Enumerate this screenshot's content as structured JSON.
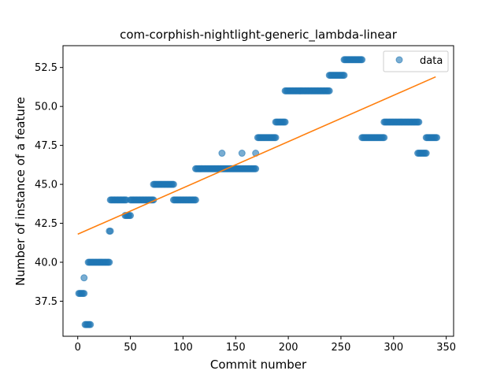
{
  "chart_data": {
    "type": "scatter",
    "title": "com-corphish-nightlight-generic_lambda-linear",
    "xlabel": "Commit number",
    "ylabel": "Number of instance of a feature",
    "xlim": [
      -14,
      357
    ],
    "ylim": [
      35.25,
      53.9
    ],
    "x_ticks": [
      0,
      50,
      100,
      150,
      200,
      250,
      300,
      350
    ],
    "y_ticks": [
      37.5,
      40.0,
      42.5,
      45.0,
      47.5,
      50.0,
      52.5
    ],
    "x_tick_labels": [
      "0",
      "50",
      "100",
      "150",
      "200",
      "250",
      "300",
      "350"
    ],
    "y_tick_labels": [
      "37.5",
      "40.0",
      "42.5",
      "45.0",
      "47.5",
      "50.0",
      "52.5"
    ],
    "grid": false,
    "legend": {
      "position": "top-right",
      "entries": [
        "data"
      ]
    },
    "colors": {
      "data": "#1f77b4",
      "fit": "#ff7f0e"
    },
    "series": [
      {
        "name": "data",
        "kind": "scatter",
        "segments": [
          {
            "x_start": 1,
            "x_end": 6,
            "y": 38
          },
          {
            "x_start": 6,
            "x_end": 6,
            "y": 39
          },
          {
            "x_start": 7,
            "x_end": 12,
            "y": 36
          },
          {
            "x_start": 10,
            "x_end": 30,
            "y": 40
          },
          {
            "x_start": 30,
            "x_end": 31,
            "y": 42
          },
          {
            "x_start": 31,
            "x_end": 46,
            "y": 44
          },
          {
            "x_start": 45,
            "x_end": 50,
            "y": 43
          },
          {
            "x_start": 50,
            "x_end": 72,
            "y": 44
          },
          {
            "x_start": 72,
            "x_end": 91,
            "y": 45
          },
          {
            "x_start": 91,
            "x_end": 112,
            "y": 44
          },
          {
            "x_start": 112,
            "x_end": 169,
            "y": 46
          },
          {
            "x_start": 137,
            "x_end": 137,
            "y": 47
          },
          {
            "x_start": 156,
            "x_end": 156,
            "y": 47
          },
          {
            "x_start": 169,
            "x_end": 169,
            "y": 47
          },
          {
            "x_start": 171,
            "x_end": 188,
            "y": 48
          },
          {
            "x_start": 188,
            "x_end": 197,
            "y": 49
          },
          {
            "x_start": 197,
            "x_end": 239,
            "y": 51
          },
          {
            "x_start": 239,
            "x_end": 253,
            "y": 52
          },
          {
            "x_start": 253,
            "x_end": 270,
            "y": 53
          },
          {
            "x_start": 270,
            "x_end": 291,
            "y": 48
          },
          {
            "x_start": 291,
            "x_end": 324,
            "y": 49
          },
          {
            "x_start": 323,
            "x_end": 331,
            "y": 47
          },
          {
            "x_start": 331,
            "x_end": 341,
            "y": 48
          }
        ]
      },
      {
        "name": "",
        "kind": "line",
        "x": [
          0,
          340
        ],
        "y": [
          41.8,
          51.9
        ]
      }
    ]
  }
}
